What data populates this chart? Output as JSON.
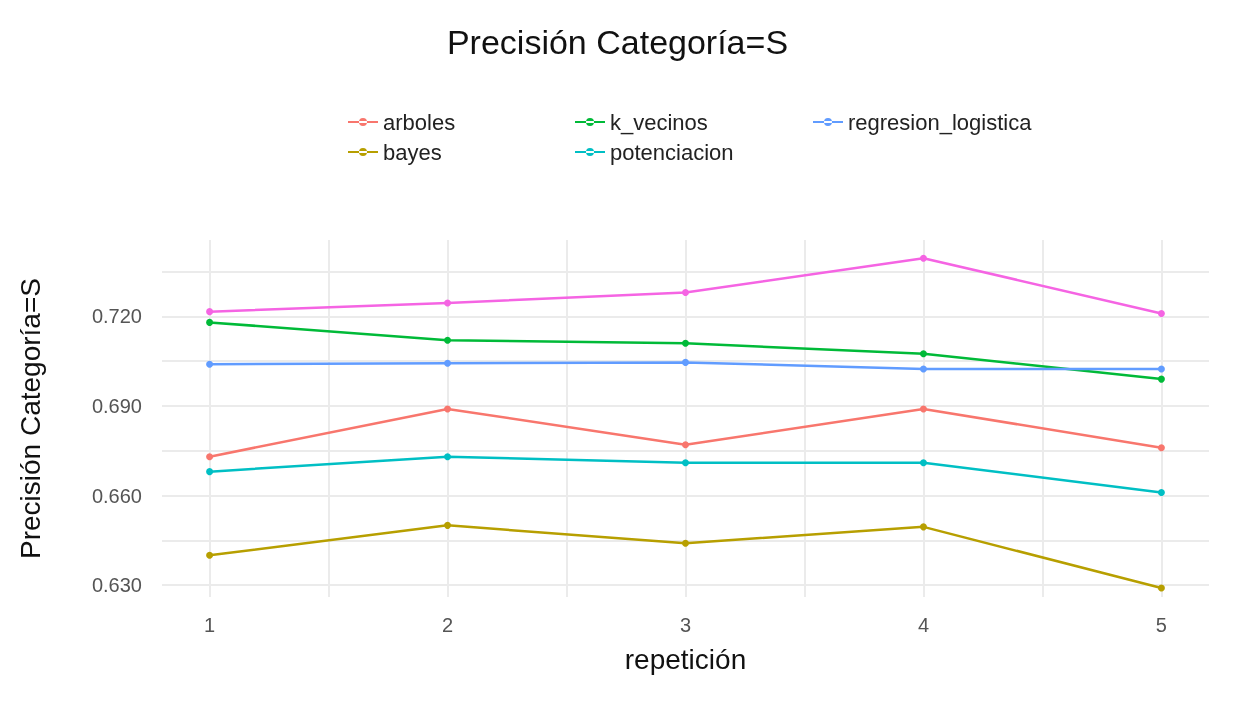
{
  "chart_data": {
    "type": "line",
    "title": "Precisión Categoría=S",
    "xlabel": "repetición",
    "ylabel": "Precisión Categoría=S",
    "x": [
      1,
      2,
      3,
      4,
      5
    ],
    "series": [
      {
        "name": "arboles",
        "color": "#f8766d",
        "values": [
          0.673,
          0.689,
          0.677,
          0.689,
          0.676
        ]
      },
      {
        "name": "bayes",
        "color": "#b79f00",
        "values": [
          0.64,
          0.65,
          0.644,
          0.6495,
          0.629
        ]
      },
      {
        "name": "k_vecinos",
        "color": "#00ba38",
        "values": [
          0.718,
          0.712,
          0.711,
          0.7075,
          0.699
        ]
      },
      {
        "name": "potenciacion",
        "color": "#00bfc4",
        "values": [
          0.668,
          0.673,
          0.671,
          0.671,
          0.661
        ]
      },
      {
        "name": "regresion_logistica",
        "color": "#619cff",
        "values": [
          0.704,
          0.7043,
          0.7046,
          0.7024,
          0.7024
        ]
      },
      {
        "color": "#f564e3",
        "values": [
          0.7216,
          0.7245,
          0.728,
          0.7395,
          0.721
        ]
      }
    ],
    "xlim": [
      0.8,
      5.2
    ],
    "xticks": [
      1,
      {
        "value": 1.5,
        "label": null
      },
      2,
      {
        "value": 2.5,
        "label": null
      },
      3,
      {
        "value": 3.5,
        "label": null
      },
      4,
      {
        "value": 4.5,
        "label": null
      },
      5
    ],
    "ylim": [
      0.626,
      0.7456
    ],
    "yticks": [
      {
        "value": 0.63,
        "label": "0.630"
      },
      {
        "value": 0.645,
        "label": null
      },
      {
        "value": 0.66,
        "label": "0.660"
      },
      {
        "value": 0.675,
        "label": null
      },
      {
        "value": 0.69,
        "label": "0.690"
      },
      {
        "value": 0.705,
        "label": null
      },
      {
        "value": 0.72,
        "label": "0.720"
      },
      {
        "value": 0.735,
        "label": null
      }
    ],
    "grid": true,
    "legend": "top",
    "marker": "circle",
    "line_style": "solid"
  }
}
